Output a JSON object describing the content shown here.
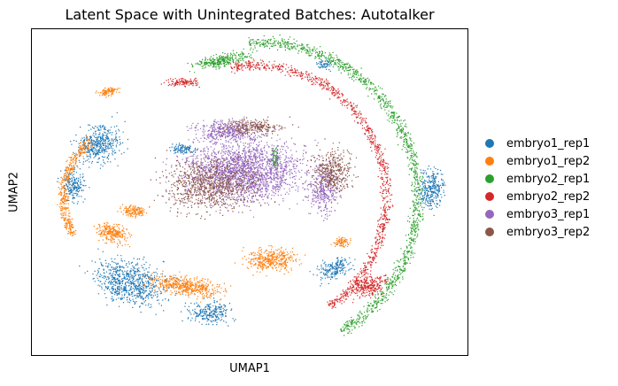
{
  "chart_data": {
    "type": "scatter",
    "title": "Latent Space with Unintegrated Batches: Autotalker",
    "xlabel": "UMAP1",
    "ylabel": "UMAP2",
    "ticks": false,
    "grid": false,
    "legend_position": "right",
    "series": [
      {
        "name": "embryo1_rep1",
        "color": "#1f77b4"
      },
      {
        "name": "embryo1_rep2",
        "color": "#ff7f0e"
      },
      {
        "name": "embryo2_rep1",
        "color": "#2ca02c"
      },
      {
        "name": "embryo2_rep2",
        "color": "#d62728"
      },
      {
        "name": "embryo3_rep1",
        "color": "#9467bd"
      },
      {
        "name": "embryo3_rep2",
        "color": "#8c564b"
      }
    ]
  }
}
